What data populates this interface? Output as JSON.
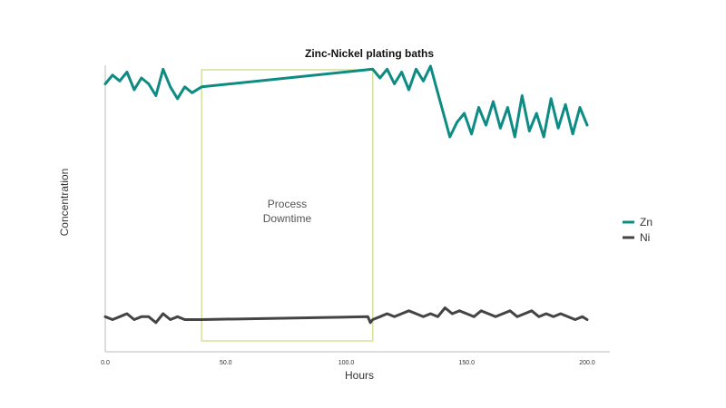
{
  "chart_data": {
    "type": "line",
    "title": "Zinc-Nickel plating baths",
    "xlabel": "Hours",
    "ylabel": "Concentration",
    "xlim": [
      0,
      210
    ],
    "ylim": [
      0,
      100
    ],
    "xticks": [
      0,
      50,
      100,
      150,
      200
    ],
    "xtick_labels": [
      "0.0",
      "50.0",
      "100.0",
      "150.0",
      "200.0"
    ],
    "grid": false,
    "legend_position": "right",
    "annotation": {
      "label_lines": [
        "Process",
        "Downtime"
      ],
      "x_start": 40,
      "x_end": 111,
      "color": "#d4e09b"
    },
    "series": [
      {
        "name": "Zn",
        "color": "#0e8c84",
        "x": [
          0,
          3,
          6,
          9,
          12,
          15,
          18,
          21,
          24,
          27,
          30,
          33,
          36,
          40,
          111,
          114,
          117,
          120,
          123,
          126,
          129,
          132,
          135,
          138,
          141,
          143,
          146,
          149,
          152,
          155,
          158,
          161,
          164,
          167,
          170,
          173,
          176,
          179,
          182,
          185,
          188,
          191,
          194,
          197,
          200
        ],
        "values": [
          90,
          93,
          91,
          94,
          88,
          92,
          90,
          86,
          95,
          89,
          85,
          89,
          87,
          89,
          95,
          92,
          95,
          90,
          94,
          88,
          95,
          91,
          96,
          87,
          78,
          72,
          77,
          80,
          73,
          82,
          76,
          84,
          75,
          82,
          72,
          86,
          74,
          80,
          72,
          85,
          75,
          83,
          73,
          82,
          76
        ]
      },
      {
        "name": "Ni",
        "color": "#444444",
        "x": [
          0,
          3,
          6,
          9,
          12,
          15,
          18,
          21,
          24,
          27,
          30,
          33,
          36,
          40,
          109,
          110,
          111,
          114,
          117,
          120,
          123,
          126,
          129,
          132,
          135,
          138,
          141,
          144,
          147,
          150,
          153,
          156,
          159,
          162,
          165,
          168,
          171,
          174,
          177,
          180,
          183,
          186,
          189,
          192,
          195,
          198,
          200
        ],
        "values": [
          11,
          10,
          11,
          12,
          10,
          11,
          11,
          9,
          12,
          10,
          11,
          10,
          10,
          10,
          11,
          9,
          10,
          11,
          12,
          11,
          12,
          13,
          12,
          11,
          12,
          11,
          14,
          12,
          13,
          12,
          11,
          13,
          12,
          11,
          12,
          13,
          11,
          12,
          13,
          11,
          12,
          11,
          12,
          11,
          10,
          11,
          10
        ]
      }
    ]
  }
}
